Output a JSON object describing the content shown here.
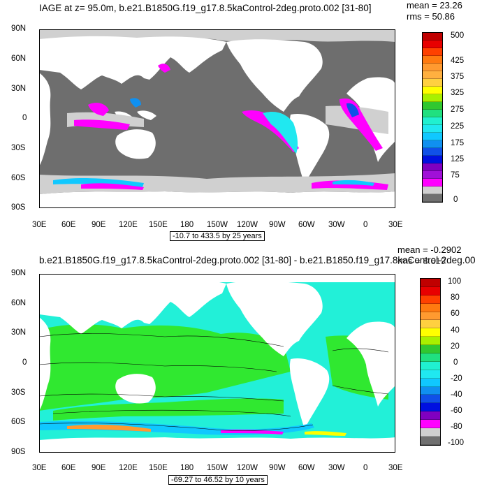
{
  "panel1": {
    "title": "IAGE at z=  95.0m, b.e21.B1850G.f19_g17.8.5kaControl-2deg.proto.002 [31-80]",
    "mean": "mean = 23.26",
    "rms": "rms = 50.86",
    "range": "-10.7 to 433.5 by 25 years",
    "colorbar": {
      "labels": [
        "500",
        "425",
        "375",
        "325",
        "275",
        "225",
        "175",
        "125",
        "75",
        "0"
      ],
      "colors": [
        "#c00000",
        "#e80000",
        "#ff4000",
        "#ff7a10",
        "#ff9a30",
        "#ffb040",
        "#ffd040",
        "#ffff00",
        "#a8f000",
        "#30c830",
        "#20e080",
        "#20f0d0",
        "#20e8f0",
        "#10c8ff",
        "#1090f0",
        "#1050e8",
        "#0010e0",
        "#8000c0",
        "#a010d8",
        "#ff00ff",
        "#d0d0d0",
        "#707070"
      ]
    }
  },
  "panel2": {
    "title": "b.e21.B1850G.f19_g17.8.5kaControl-2deg.proto.002 [31-80] - b.e21.B1850.f19_g17.8kaControl-2deg.00",
    "mean": "mean = -0.2902",
    "rms": "rms = 8.619",
    "range": "-69.27 to 46.52 by 10 years",
    "colorbar": {
      "labels": [
        "100",
        "80",
        "60",
        "40",
        "20",
        "0",
        "-20",
        "-40",
        "-60",
        "-80",
        "-100"
      ],
      "colors": [
        "#c00000",
        "#e80000",
        "#ff4000",
        "#ff7a10",
        "#ff9a30",
        "#ffd040",
        "#ffff00",
        "#a8f000",
        "#30c830",
        "#20e080",
        "#20f0d0",
        "#20e8f0",
        "#10c8ff",
        "#1090f0",
        "#1050e8",
        "#0010e0",
        "#8000c0",
        "#ff00ff",
        "#d0d0d0",
        "#707070"
      ]
    }
  },
  "axes": {
    "lat_labels": [
      "90N",
      "60N",
      "30N",
      "0",
      "30S",
      "60S",
      "90S"
    ],
    "lon_labels": [
      "30E",
      "60E",
      "90E",
      "120E",
      "150E",
      "180",
      "150W",
      "120W",
      "90W",
      "60W",
      "30W",
      "0",
      "30E"
    ]
  },
  "colors": {
    "land": "#ffffff",
    "ocean_gray": "#6e6e6e",
    "ice_gray": "#d0d0d0",
    "diff_ocean": "#22f0d8",
    "diff_green": "#30e830"
  }
}
